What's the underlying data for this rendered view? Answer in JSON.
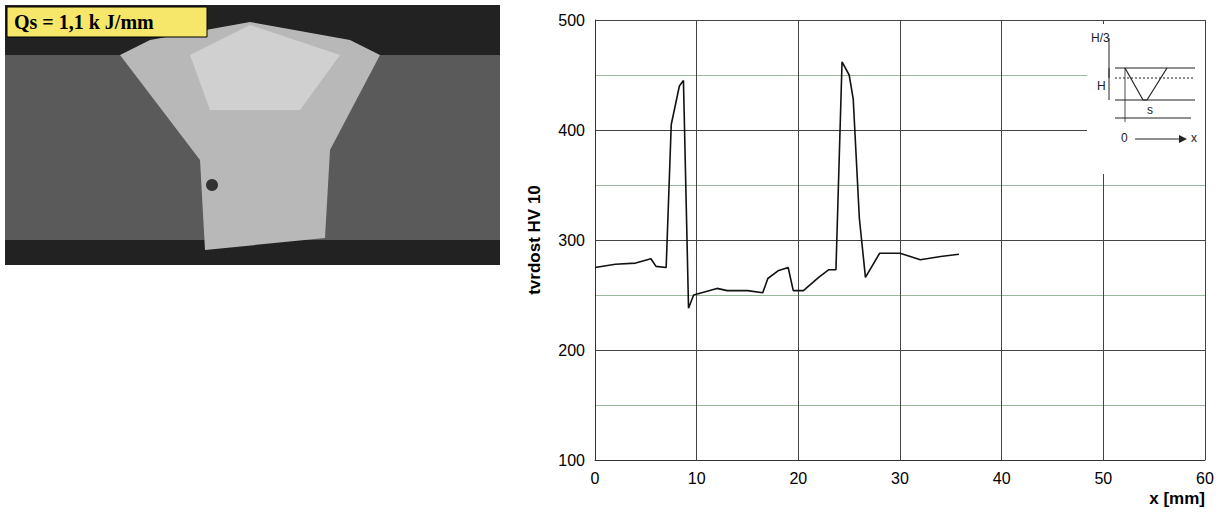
{
  "macrograph_label": "Qs = 1,1 k J/mm",
  "chart_data": {
    "type": "line",
    "ylabel": "tvrdost HV 10",
    "xlabel": "x [mm]",
    "annotations": [
      "H/3",
      "H",
      "s",
      "0",
      "x"
    ],
    "x": [
      0,
      2,
      4,
      5.5,
      6,
      7,
      7.5,
      8.3,
      8.7,
      9.2,
      9.7,
      12,
      13,
      15,
      16.5,
      17,
      18,
      19,
      19.5,
      20.5,
      22,
      23,
      23.7,
      24.3,
      25,
      25.4,
      26,
      26.6,
      28,
      30,
      32,
      34,
      35.8
    ],
    "values": [
      275,
      278,
      279,
      283,
      276,
      275,
      405,
      440,
      445,
      238,
      250,
      256,
      254,
      254,
      252,
      265,
      272,
      275,
      254,
      254,
      266,
      273,
      273,
      462,
      450,
      428,
      320,
      266,
      288,
      288,
      282,
      285,
      287
    ],
    "color": "#111111",
    "xlim": [
      0,
      60
    ],
    "xticks": [
      0,
      10,
      20,
      30,
      40,
      50,
      60
    ],
    "ylim": [
      100,
      500
    ],
    "yticks": [
      100,
      200,
      300,
      400,
      500
    ],
    "grid": true
  }
}
